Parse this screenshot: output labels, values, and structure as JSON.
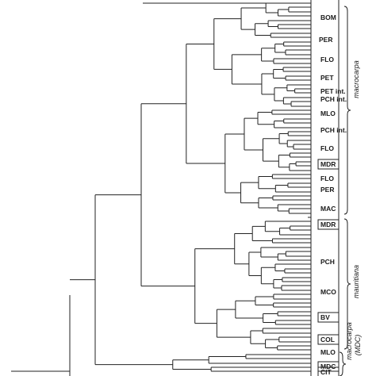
{
  "figure": {
    "leaf_labels": [
      "BOM",
      "PER",
      "FLO",
      "PET",
      "PET int.",
      "PCH int.",
      "MLO",
      "PCH int.",
      "FLO",
      "MDR",
      "FLO",
      "PER",
      "MAC",
      "MDR",
      "PCH",
      "MCO",
      "BV",
      "COL",
      "MLO",
      "MDC",
      "CIT"
    ],
    "boxed_labels": [
      "MDR",
      "MDR",
      "BV",
      "COL",
      "MDC",
      "CIT"
    ],
    "groups": [
      {
        "label": "macrocarpa"
      },
      {
        "label": "mauritiana"
      },
      {
        "label": "macrocarpa"
      },
      {
        "label": "(MDC)"
      }
    ]
  }
}
